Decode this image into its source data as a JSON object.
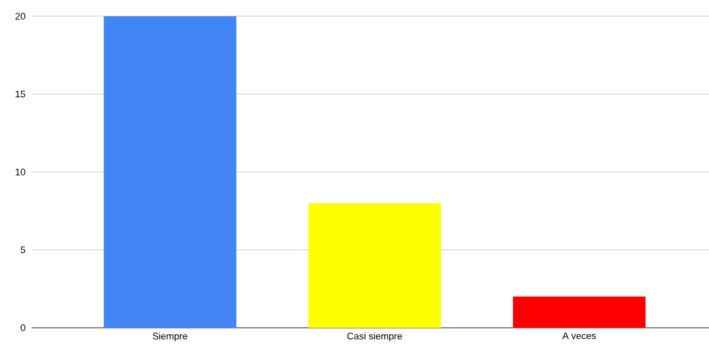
{
  "chart_data": {
    "type": "bar",
    "categories": [
      "Siempre",
      "Casi siempre",
      "A veces"
    ],
    "values": [
      20,
      8,
      2
    ],
    "colors": [
      "#4285f4",
      "#ffff00",
      "#ff0000"
    ],
    "ylim": [
      0,
      20
    ],
    "yticks": [
      0,
      5,
      10,
      15,
      20
    ],
    "grid": "y"
  }
}
